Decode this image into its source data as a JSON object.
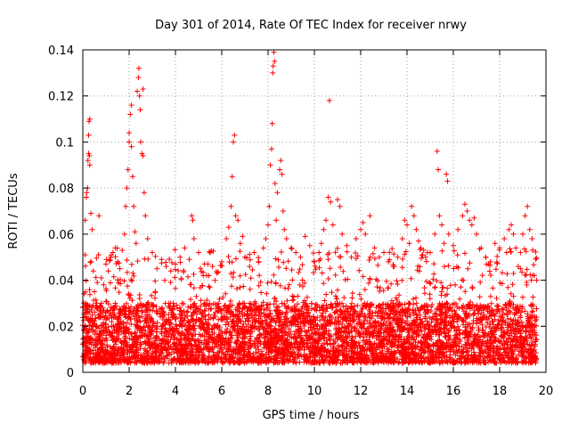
{
  "chart_data": {
    "type": "scatter",
    "title": "Day 301 of 2014, Rate Of TEC Index for receiver nrwy",
    "xlabel": "GPS time / hours",
    "ylabel": "ROTI / TECUs",
    "xlim": [
      0,
      20
    ],
    "ylim": [
      0,
      0.14
    ],
    "xticks": [
      "0",
      "2",
      "4",
      "6",
      "8",
      "10",
      "12",
      "14",
      "16",
      "18",
      "20"
    ],
    "yticks": [
      "0",
      "0.02",
      "0.04",
      "0.06",
      "0.08",
      "0.1",
      "0.12",
      "0.14"
    ],
    "grid": true,
    "marker": "+",
    "series": [
      {
        "name": "ROTI",
        "color": "#ff0000",
        "points": [
          [
            0.05,
            0.015
          ],
          [
            0.1,
            0.051
          ],
          [
            0.1,
            0.066
          ],
          [
            0.15,
            0.076
          ],
          [
            0.17,
            0.078
          ],
          [
            0.2,
            0.08
          ],
          [
            0.22,
            0.092
          ],
          [
            0.25,
            0.095
          ],
          [
            0.28,
            0.094
          ],
          [
            0.3,
            0.09
          ],
          [
            0.25,
            0.103
          ],
          [
            0.3,
            0.11
          ],
          [
            0.27,
            0.109
          ],
          [
            0.35,
            0.069
          ],
          [
            0.4,
            0.062
          ],
          [
            0.45,
            0.044
          ],
          [
            0.5,
            0.035
          ],
          [
            0.6,
            0.03
          ],
          [
            0.7,
            0.068
          ],
          [
            0.8,
            0.041
          ],
          [
            0.9,
            0.038
          ],
          [
            1.0,
            0.047
          ],
          [
            1.1,
            0.044
          ],
          [
            1.2,
            0.05
          ],
          [
            1.3,
            0.052
          ],
          [
            1.4,
            0.054
          ],
          [
            1.5,
            0.048
          ],
          [
            1.6,
            0.045
          ],
          [
            1.7,
            0.053
          ],
          [
            1.8,
            0.06
          ],
          [
            1.85,
            0.072
          ],
          [
            1.9,
            0.08
          ],
          [
            1.95,
            0.088
          ],
          [
            2.0,
            0.1
          ],
          [
            2.0,
            0.104
          ],
          [
            2.05,
            0.112
          ],
          [
            2.1,
            0.098
          ],
          [
            2.1,
            0.116
          ],
          [
            2.15,
            0.085
          ],
          [
            2.2,
            0.072
          ],
          [
            2.25,
            0.061
          ],
          [
            2.3,
            0.056
          ],
          [
            2.35,
            0.122
          ],
          [
            2.4,
            0.128
          ],
          [
            2.42,
            0.132
          ],
          [
            2.45,
            0.12
          ],
          [
            2.48,
            0.114
          ],
          [
            2.5,
            0.1
          ],
          [
            2.55,
            0.095
          ],
          [
            2.6,
            0.094
          ],
          [
            2.6,
            0.123
          ],
          [
            2.65,
            0.078
          ],
          [
            2.7,
            0.068
          ],
          [
            2.8,
            0.058
          ],
          [
            3.0,
            0.052
          ],
          [
            3.2,
            0.045
          ],
          [
            3.4,
            0.049
          ],
          [
            3.6,
            0.046
          ],
          [
            3.8,
            0.044
          ],
          [
            4.0,
            0.047
          ],
          [
            4.2,
            0.05
          ],
          [
            4.4,
            0.054
          ],
          [
            4.6,
            0.049
          ],
          [
            4.7,
            0.068
          ],
          [
            4.75,
            0.066
          ],
          [
            4.8,
            0.058
          ],
          [
            5.0,
            0.052
          ],
          [
            5.2,
            0.042
          ],
          [
            5.4,
            0.047
          ],
          [
            5.5,
            0.052
          ],
          [
            5.6,
            0.046
          ],
          [
            5.8,
            0.043
          ],
          [
            6.0,
            0.048
          ],
          [
            6.2,
            0.058
          ],
          [
            6.3,
            0.063
          ],
          [
            6.4,
            0.072
          ],
          [
            6.45,
            0.085
          ],
          [
            6.5,
            0.1
          ],
          [
            6.55,
            0.103
          ],
          [
            6.6,
            0.068
          ],
          [
            6.7,
            0.066
          ],
          [
            6.8,
            0.056
          ],
          [
            6.9,
            0.059
          ],
          [
            7.0,
            0.05
          ],
          [
            7.2,
            0.046
          ],
          [
            7.4,
            0.052
          ],
          [
            7.6,
            0.048
          ],
          [
            7.8,
            0.054
          ],
          [
            7.9,
            0.058
          ],
          [
            8.0,
            0.064
          ],
          [
            8.05,
            0.072
          ],
          [
            8.1,
            0.09
          ],
          [
            8.15,
            0.097
          ],
          [
            8.18,
            0.108
          ],
          [
            8.2,
            0.13
          ],
          [
            8.22,
            0.133
          ],
          [
            8.25,
            0.139
          ],
          [
            8.28,
            0.135
          ],
          [
            8.3,
            0.082
          ],
          [
            8.35,
            0.066
          ],
          [
            8.4,
            0.078
          ],
          [
            8.5,
            0.088
          ],
          [
            8.55,
            0.092
          ],
          [
            8.6,
            0.086
          ],
          [
            8.65,
            0.07
          ],
          [
            8.7,
            0.062
          ],
          [
            8.8,
            0.058
          ],
          [
            9.0,
            0.054
          ],
          [
            9.2,
            0.052
          ],
          [
            9.4,
            0.05
          ],
          [
            9.6,
            0.059
          ],
          [
            9.8,
            0.055
          ],
          [
            10.0,
            0.048
          ],
          [
            10.2,
            0.052
          ],
          [
            10.3,
            0.056
          ],
          [
            10.4,
            0.062
          ],
          [
            10.5,
            0.066
          ],
          [
            10.6,
            0.076
          ],
          [
            10.65,
            0.118
          ],
          [
            10.7,
            0.074
          ],
          [
            10.8,
            0.064
          ],
          [
            11.0,
            0.075
          ],
          [
            11.1,
            0.072
          ],
          [
            11.2,
            0.06
          ],
          [
            11.4,
            0.055
          ],
          [
            11.6,
            0.05
          ],
          [
            11.8,
            0.058
          ],
          [
            12.0,
            0.062
          ],
          [
            12.1,
            0.065
          ],
          [
            12.2,
            0.06
          ],
          [
            12.4,
            0.068
          ],
          [
            12.6,
            0.054
          ],
          [
            12.8,
            0.05
          ],
          [
            13.0,
            0.052
          ],
          [
            13.2,
            0.048
          ],
          [
            13.4,
            0.046
          ],
          [
            13.6,
            0.05
          ],
          [
            13.8,
            0.058
          ],
          [
            13.9,
            0.066
          ],
          [
            14.0,
            0.064
          ],
          [
            14.1,
            0.056
          ],
          [
            14.2,
            0.072
          ],
          [
            14.3,
            0.068
          ],
          [
            14.4,
            0.062
          ],
          [
            14.5,
            0.057
          ],
          [
            14.6,
            0.054
          ],
          [
            14.8,
            0.05
          ],
          [
            15.0,
            0.052
          ],
          [
            15.2,
            0.06
          ],
          [
            15.3,
            0.096
          ],
          [
            15.35,
            0.088
          ],
          [
            15.4,
            0.068
          ],
          [
            15.5,
            0.064
          ],
          [
            15.6,
            0.056
          ],
          [
            15.7,
            0.086
          ],
          [
            15.75,
            0.083
          ],
          [
            15.8,
            0.06
          ],
          [
            16.0,
            0.055
          ],
          [
            16.2,
            0.062
          ],
          [
            16.4,
            0.068
          ],
          [
            16.5,
            0.073
          ],
          [
            16.6,
            0.07
          ],
          [
            16.7,
            0.066
          ],
          [
            16.8,
            0.064
          ],
          [
            16.9,
            0.067
          ],
          [
            17.0,
            0.06
          ],
          [
            17.2,
            0.054
          ],
          [
            17.4,
            0.05
          ],
          [
            17.6,
            0.048
          ],
          [
            17.8,
            0.056
          ],
          [
            18.0,
            0.054
          ],
          [
            18.2,
            0.058
          ],
          [
            18.3,
            0.052
          ],
          [
            18.4,
            0.062
          ],
          [
            18.5,
            0.064
          ],
          [
            18.6,
            0.06
          ],
          [
            18.7,
            0.054
          ],
          [
            18.8,
            0.046
          ],
          [
            18.9,
            0.052
          ],
          [
            19.0,
            0.06
          ],
          [
            19.1,
            0.068
          ],
          [
            19.2,
            0.072
          ],
          [
            19.3,
            0.062
          ],
          [
            19.4,
            0.058
          ],
          [
            19.5,
            0.042
          ],
          [
            19.6,
            0.04
          ]
        ],
        "background_band": {
          "x_range": [
            0,
            19.6
          ],
          "typical_min": 0.004,
          "typical_max": 0.03,
          "typical_center": 0.014
        }
      }
    ]
  }
}
